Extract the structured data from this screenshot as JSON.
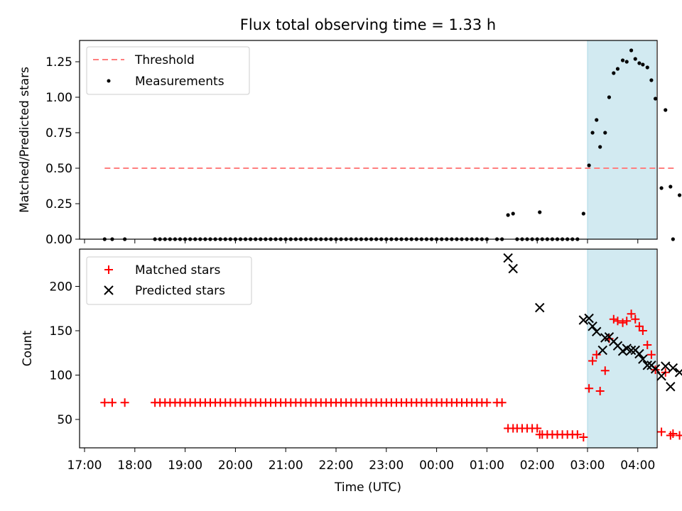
{
  "chart_data": [
    {
      "type": "scatter",
      "title": "Flux total observing time = 1.33 h",
      "ylabel": "Matched/Predicted stars",
      "xlabel": "",
      "ylim": [
        0,
        1.4
      ],
      "yticks": [
        "0.00",
        "0.25",
        "0.50",
        "0.75",
        "1.00",
        "1.25"
      ],
      "highlight_span": {
        "x": [
          10.0,
          11.35
        ],
        "color": "#add8e6"
      },
      "legend": {
        "placement": "top-left"
      },
      "series": [
        {
          "name": "Threshold",
          "kind": "dashed-line",
          "color": "#ff7f7f",
          "x": [
            0.4,
            11.75
          ],
          "y": [
            0.5,
            0.5
          ]
        },
        {
          "name": "Measurements",
          "kind": "dots",
          "color": "#000000",
          "x": [
            0.4,
            0.55,
            0.8,
            1.4,
            1.5,
            1.6,
            1.7,
            1.8,
            1.9,
            2.0,
            2.1,
            2.2,
            2.3,
            2.4,
            2.5,
            2.6,
            2.7,
            2.8,
            2.9,
            3.0,
            3.1,
            3.2,
            3.3,
            3.4,
            3.5,
            3.6,
            3.7,
            3.8,
            3.9,
            4.0,
            4.1,
            4.2,
            4.3,
            4.4,
            4.5,
            4.6,
            4.7,
            4.8,
            4.9,
            5.0,
            5.1,
            5.2,
            5.3,
            5.4,
            5.5,
            5.6,
            5.7,
            5.8,
            5.9,
            6.0,
            6.1,
            6.2,
            6.3,
            6.4,
            6.5,
            6.6,
            6.7,
            6.8,
            6.9,
            7.0,
            7.1,
            7.2,
            7.3,
            7.4,
            7.5,
            7.6,
            7.7,
            7.8,
            7.9,
            8.0,
            8.2,
            8.3,
            8.42,
            8.52,
            8.6,
            8.7,
            8.8,
            8.9,
            9.0,
            9.05,
            9.1,
            9.2,
            9.3,
            9.4,
            9.5,
            9.6,
            9.7,
            9.8,
            9.92,
            10.03,
            10.1,
            10.18,
            10.25,
            10.35,
            10.43,
            10.52,
            10.6,
            10.7,
            10.78,
            10.87,
            10.95,
            11.03,
            11.1,
            11.19,
            11.27,
            11.35,
            11.47,
            11.55,
            11.65,
            11.7,
            11.83
          ],
          "y": [
            0,
            0,
            0,
            0,
            0,
            0,
            0,
            0,
            0,
            0,
            0,
            0,
            0,
            0,
            0,
            0,
            0,
            0,
            0,
            0,
            0,
            0,
            0,
            0,
            0,
            0,
            0,
            0,
            0,
            0,
            0,
            0,
            0,
            0,
            0,
            0,
            0,
            0,
            0,
            0,
            0,
            0,
            0,
            0,
            0,
            0,
            0,
            0,
            0,
            0,
            0,
            0,
            0,
            0,
            0,
            0,
            0,
            0,
            0,
            0,
            0,
            0,
            0,
            0,
            0,
            0,
            0,
            0,
            0,
            0,
            0,
            0,
            0.17,
            0.18,
            0,
            0,
            0,
            0,
            0,
            0.19,
            0,
            0,
            0,
            0,
            0,
            0,
            0,
            0,
            0.18,
            0.52,
            0.75,
            0.84,
            0.65,
            0.75,
            1.0,
            1.17,
            1.2,
            1.26,
            1.25,
            1.33,
            1.27,
            1.24,
            1.23,
            1.21,
            1.12,
            0.99,
            0.36,
            0.91,
            0.37,
            0.0,
            0.31
          ]
        }
      ]
    },
    {
      "type": "scatter",
      "title": "",
      "ylabel": "Count",
      "xlabel": "Time (UTC)",
      "ylim": [
        18,
        242
      ],
      "yticks": [
        "50",
        "100",
        "150",
        "200"
      ],
      "xticks": [
        "17:00",
        "18:00",
        "19:00",
        "20:00",
        "21:00",
        "22:00",
        "23:00",
        "00:00",
        "01:00",
        "02:00",
        "03:00",
        "04:00"
      ],
      "highlight_span": {
        "x": [
          10.0,
          11.35
        ],
        "color": "#add8e6"
      },
      "legend": {
        "placement": "top-left"
      },
      "series": [
        {
          "name": "Matched stars",
          "marker": "plus",
          "color": "#ff0000",
          "x": [
            0.4,
            0.55,
            0.8,
            1.4,
            1.5,
            1.6,
            1.7,
            1.8,
            1.9,
            2.0,
            2.1,
            2.2,
            2.3,
            2.4,
            2.5,
            2.6,
            2.7,
            2.8,
            2.9,
            3.0,
            3.1,
            3.2,
            3.3,
            3.4,
            3.5,
            3.6,
            3.7,
            3.8,
            3.9,
            4.0,
            4.1,
            4.2,
            4.3,
            4.4,
            4.5,
            4.6,
            4.7,
            4.8,
            4.9,
            5.0,
            5.1,
            5.2,
            5.3,
            5.4,
            5.5,
            5.6,
            5.7,
            5.8,
            5.9,
            6.0,
            6.1,
            6.2,
            6.3,
            6.4,
            6.5,
            6.6,
            6.7,
            6.8,
            6.9,
            7.0,
            7.1,
            7.2,
            7.3,
            7.4,
            7.5,
            7.6,
            7.7,
            7.8,
            7.9,
            8.0,
            8.2,
            8.3,
            8.42,
            8.52,
            8.6,
            8.7,
            8.8,
            8.9,
            9.0,
            9.05,
            9.1,
            9.2,
            9.3,
            9.4,
            9.5,
            9.6,
            9.7,
            9.8,
            9.92,
            10.03,
            10.1,
            10.18,
            10.25,
            10.35,
            10.43,
            10.52,
            10.6,
            10.7,
            10.78,
            10.87,
            10.95,
            11.03,
            11.1,
            11.19,
            11.27,
            11.35,
            11.47,
            11.55,
            11.65,
            11.7,
            11.83
          ],
          "y": [
            69,
            69,
            69,
            69,
            69,
            69,
            69,
            69,
            69,
            69,
            69,
            69,
            69,
            69,
            69,
            69,
            69,
            69,
            69,
            69,
            69,
            69,
            69,
            69,
            69,
            69,
            69,
            69,
            69,
            69,
            69,
            69,
            69,
            69,
            69,
            69,
            69,
            69,
            69,
            69,
            69,
            69,
            69,
            69,
            69,
            69,
            69,
            69,
            69,
            69,
            69,
            69,
            69,
            69,
            69,
            69,
            69,
            69,
            69,
            69,
            69,
            69,
            69,
            69,
            69,
            69,
            69,
            69,
            69,
            69,
            69,
            69,
            40,
            40,
            40,
            40,
            40,
            40,
            40,
            33,
            33,
            33,
            33,
            33,
            33,
            33,
            33,
            33,
            30,
            85,
            116,
            123,
            82,
            105,
            141,
            163,
            161,
            159,
            161,
            169,
            163,
            155,
            150,
            134,
            123,
            106,
            36,
            103,
            32,
            34,
            32
          ]
        },
        {
          "name": "Predicted stars",
          "marker": "x",
          "color": "#000000",
          "x": [
            8.42,
            8.52,
            9.05,
            9.92,
            10.03,
            10.1,
            10.18,
            10.3,
            10.35,
            10.43,
            10.52,
            10.6,
            10.7,
            10.78,
            10.87,
            10.95,
            11.03,
            11.1,
            11.19,
            11.27,
            11.35,
            11.47,
            11.55,
            11.65,
            11.7,
            11.83
          ],
          "y": [
            232,
            220,
            176,
            162,
            164,
            155,
            149,
            128,
            142,
            143,
            138,
            133,
            127,
            130,
            128,
            128,
            124,
            118,
            111,
            111,
            107,
            99,
            110,
            87,
            108,
            103
          ]
        }
      ]
    }
  ]
}
